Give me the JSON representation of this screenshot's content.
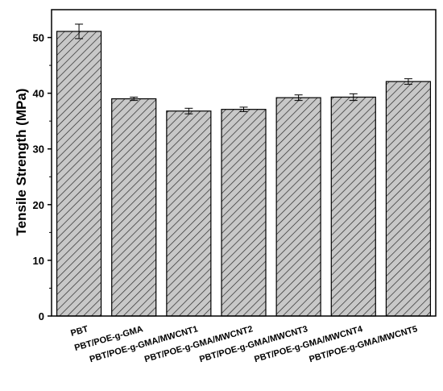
{
  "chart_data": {
    "type": "bar",
    "title": "",
    "xlabel": "",
    "ylabel": "Tensile Strength (MPa)",
    "ylim": [
      0,
      55
    ],
    "yticks": [
      0,
      10,
      20,
      30,
      40,
      50
    ],
    "grid": false,
    "legend": "none",
    "categories": [
      "PBT",
      "PBT/POE-g-GMA",
      "PBT/POE-g-GMA/MWCNT1",
      "PBT/POE-g-GMA/MWCNT2",
      "PBT/POE-g-GMA/MWCNT3",
      "PBT/POE-g-GMA/MWCNT4",
      "PBT/POE-g-GMA/MWCNT5"
    ],
    "values": [
      51.1,
      39.0,
      36.8,
      37.1,
      39.2,
      39.3,
      42.1
    ],
    "errors": [
      1.3,
      0.3,
      0.5,
      0.4,
      0.5,
      0.6,
      0.5
    ],
    "colors": {
      "bar_fill": "#c8c8c8",
      "bar_hatch": "#1a1a1a",
      "bar_stroke": "#000000",
      "axis": "#000000"
    }
  }
}
